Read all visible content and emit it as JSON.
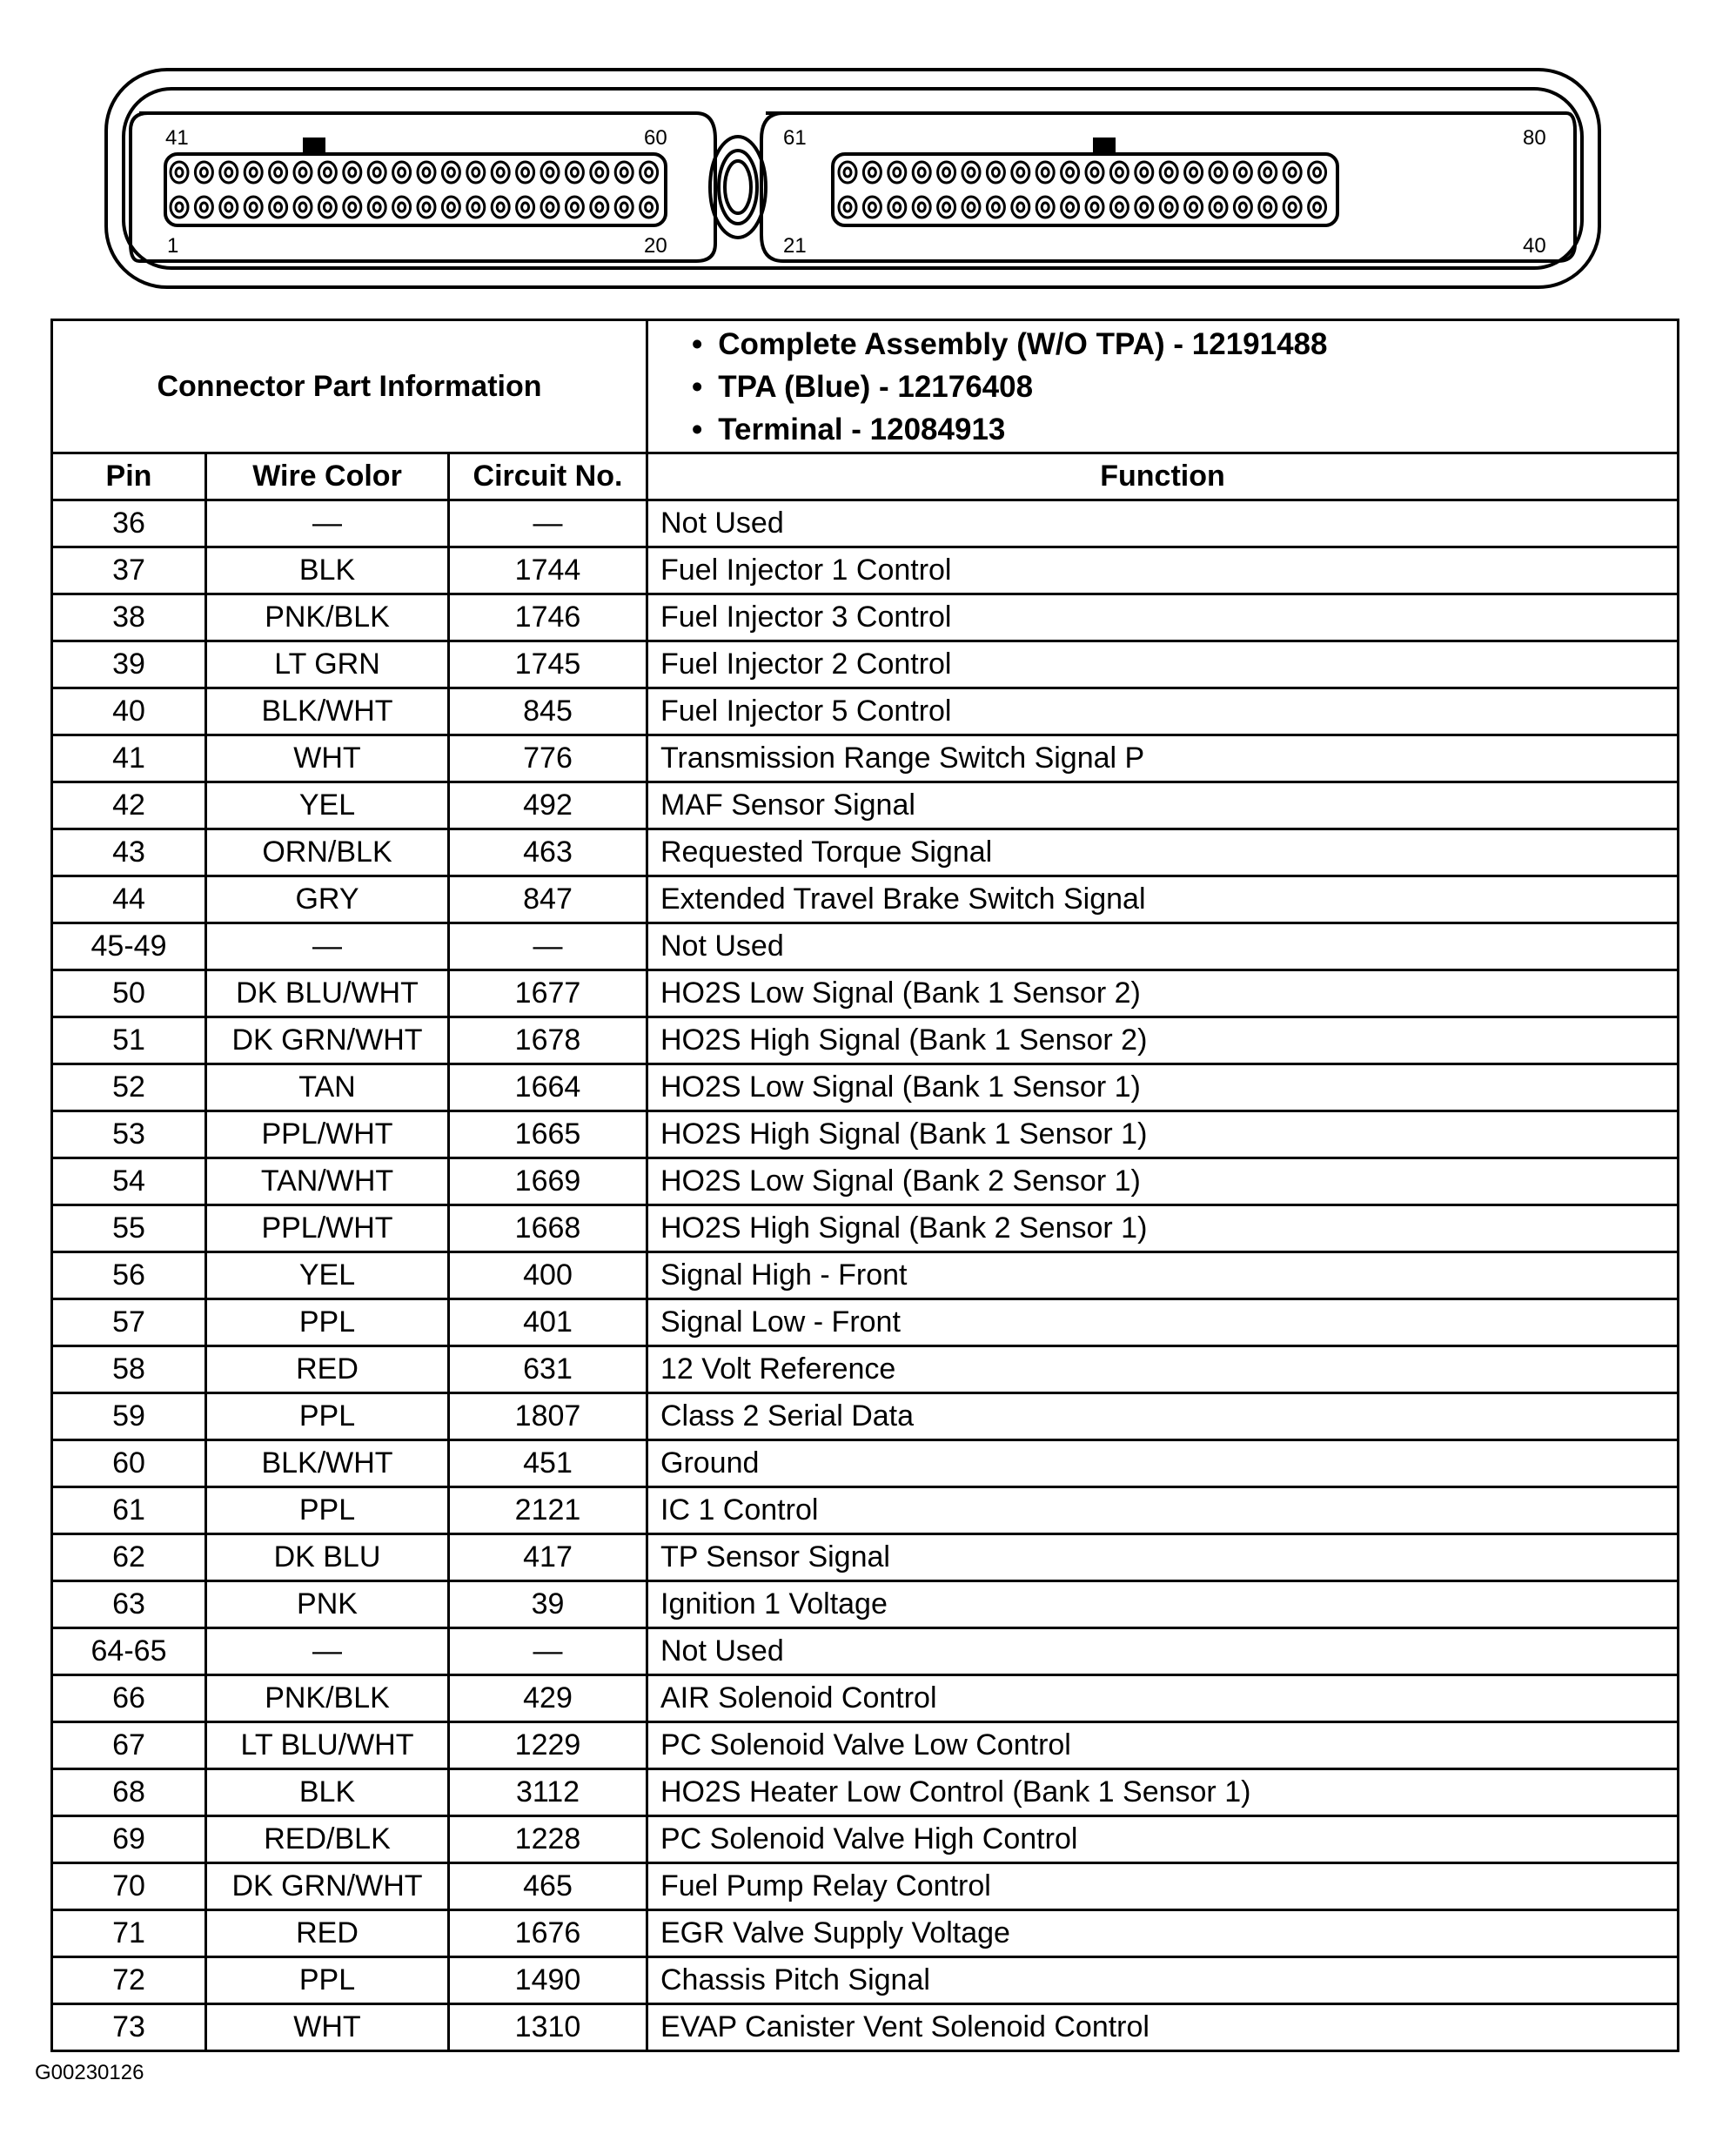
{
  "connector": {
    "left_labels": {
      "top_left": "41",
      "top_right": "60",
      "bottom_left": "1",
      "bottom_right": "20"
    },
    "right_labels": {
      "top_left": "61",
      "top_right": "80",
      "bottom_left": "21",
      "bottom_right": "40"
    },
    "pins_per_row": 20
  },
  "part_info": {
    "label": "Connector Part Information",
    "items": [
      "Complete Assembly (W/O TPA) - 12191488",
      "TPA (Blue) - 12176408",
      "Terminal - 12084913"
    ]
  },
  "columns": [
    "Pin",
    "Wire Color",
    "Circuit No.",
    "Function"
  ],
  "rows": [
    [
      "36",
      "—",
      "—",
      "Not Used"
    ],
    [
      "37",
      "BLK",
      "1744",
      "Fuel Injector 1 Control"
    ],
    [
      "38",
      "PNK/BLK",
      "1746",
      "Fuel Injector 3 Control"
    ],
    [
      "39",
      "LT GRN",
      "1745",
      "Fuel Injector 2 Control"
    ],
    [
      "40",
      "BLK/WHT",
      "845",
      "Fuel Injector 5 Control"
    ],
    [
      "41",
      "WHT",
      "776",
      "Transmission Range Switch Signal P"
    ],
    [
      "42",
      "YEL",
      "492",
      "MAF Sensor Signal"
    ],
    [
      "43",
      "ORN/BLK",
      "463",
      "Requested Torque Signal"
    ],
    [
      "44",
      "GRY",
      "847",
      "Extended Travel Brake Switch Signal"
    ],
    [
      "45-49",
      "—",
      "—",
      "Not Used"
    ],
    [
      "50",
      "DK BLU/WHT",
      "1677",
      "HO2S Low Signal (Bank 1 Sensor 2)"
    ],
    [
      "51",
      "DK GRN/WHT",
      "1678",
      "HO2S High Signal (Bank 1 Sensor 2)"
    ],
    [
      "52",
      "TAN",
      "1664",
      "HO2S Low Signal (Bank 1 Sensor 1)"
    ],
    [
      "53",
      "PPL/WHT",
      "1665",
      "HO2S High Signal (Bank 1 Sensor 1)"
    ],
    [
      "54",
      "TAN/WHT",
      "1669",
      "HO2S Low Signal (Bank 2 Sensor 1)"
    ],
    [
      "55",
      "PPL/WHT",
      "1668",
      "HO2S High Signal (Bank 2 Sensor 1)"
    ],
    [
      "56",
      "YEL",
      "400",
      "Signal High - Front"
    ],
    [
      "57",
      "PPL",
      "401",
      "Signal Low - Front"
    ],
    [
      "58",
      "RED",
      "631",
      "12 Volt Reference"
    ],
    [
      "59",
      "PPL",
      "1807",
      "Class 2 Serial Data"
    ],
    [
      "60",
      "BLK/WHT",
      "451",
      "Ground"
    ],
    [
      "61",
      "PPL",
      "2121",
      "IC 1 Control"
    ],
    [
      "62",
      "DK BLU",
      "417",
      "TP Sensor Signal"
    ],
    [
      "63",
      "PNK",
      "39",
      "Ignition 1 Voltage"
    ],
    [
      "64-65",
      "—",
      "—",
      "Not Used"
    ],
    [
      "66",
      "PNK/BLK",
      "429",
      "AIR Solenoid Control"
    ],
    [
      "67",
      "LT BLU/WHT",
      "1229",
      "PC Solenoid Valve Low Control"
    ],
    [
      "68",
      "BLK",
      "3112",
      "HO2S Heater Low Control (Bank 1 Sensor 1)"
    ],
    [
      "69",
      "RED/BLK",
      "1228",
      "PC Solenoid Valve High Control"
    ],
    [
      "70",
      "DK GRN/WHT",
      "465",
      "Fuel Pump Relay Control"
    ],
    [
      "71",
      "RED",
      "1676",
      "EGR Valve Supply Voltage"
    ],
    [
      "72",
      "PPL",
      "1490",
      "Chassis Pitch Signal"
    ],
    [
      "73",
      "WHT",
      "1310",
      "EVAP Canister Vent Solenoid Control"
    ]
  ],
  "figure_id": "G00230126"
}
